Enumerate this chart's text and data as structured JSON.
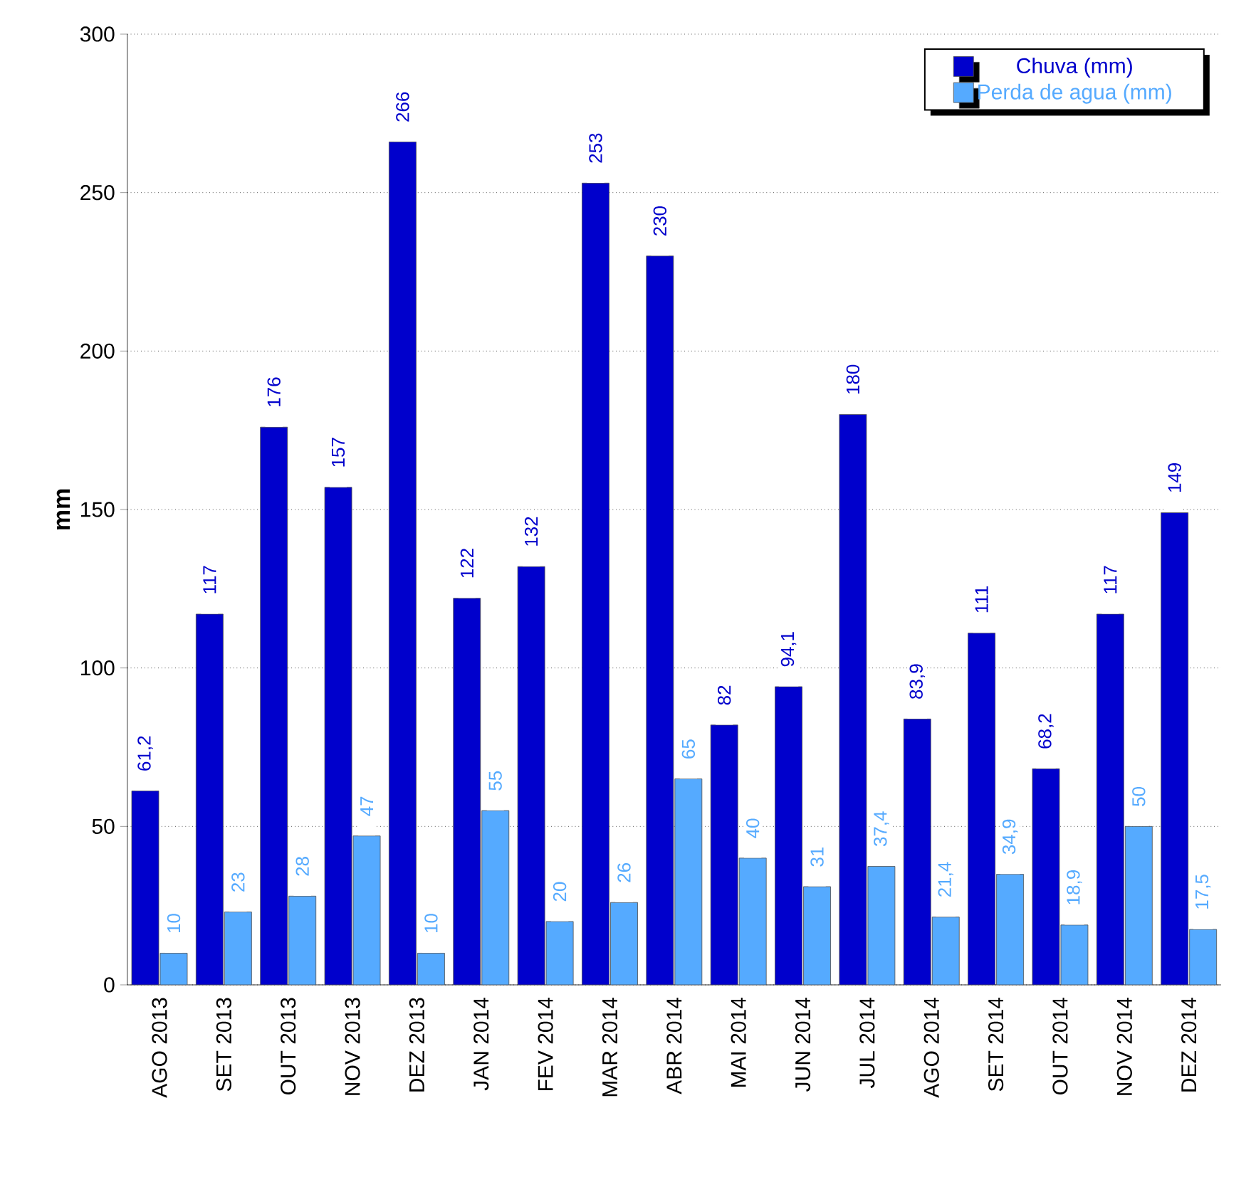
{
  "chart_data": {
    "type": "bar",
    "ylabel": "mm",
    "categories": [
      "AGO 2013",
      "SET 2013",
      "OUT 2013",
      "NOV 2013",
      "DEZ 2013",
      "JAN 2014",
      "FEV 2014",
      "MAR 2014",
      "ABR 2014",
      "MAI 2014",
      "JUN 2014",
      "JUL 2014",
      "AGO 2014",
      "SET 2014",
      "OUT 2014",
      "NOV 2014",
      "DEZ 2014"
    ],
    "series": [
      {
        "name": "Chuva (mm)",
        "color": "#0000cc",
        "values": [
          61.2,
          117,
          176,
          157,
          266,
          122,
          132,
          253,
          230,
          82,
          94.1,
          180,
          83.9,
          111,
          68.2,
          117,
          149
        ],
        "value_labels": [
          "61,2",
          "117",
          "176",
          "157",
          "266",
          "122",
          "132",
          "253",
          "230",
          "82",
          "94,1",
          "180",
          "83,9",
          "111",
          "68,2",
          "117",
          "149"
        ]
      },
      {
        "name": "Perda de agua (mm)",
        "color": "#55aaff",
        "values": [
          10,
          23,
          28,
          47,
          10,
          55,
          20,
          26,
          65,
          40,
          31,
          37.4,
          21.4,
          34.9,
          18.9,
          50,
          17.5
        ],
        "value_labels": [
          "10",
          "23",
          "28",
          "47",
          "10",
          "55",
          "20",
          "26",
          "65",
          "40",
          "31",
          "37,4",
          "21,4",
          "34,9",
          "18,9",
          "50",
          "17,5"
        ]
      }
    ],
    "ylim": [
      0,
      300
    ],
    "yticks": [
      0,
      50,
      100,
      150,
      200,
      250,
      300
    ],
    "grid": "y",
    "legend": "top right"
  }
}
